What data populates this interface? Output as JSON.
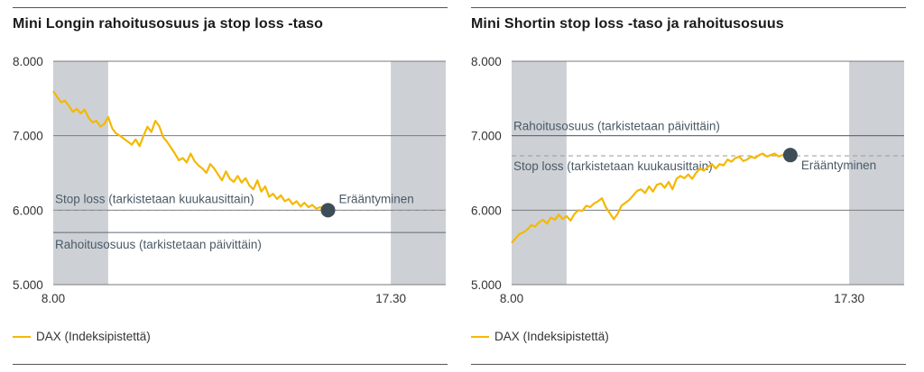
{
  "colors": {
    "series": "#F5B800",
    "closed_band": "#CDD1D6",
    "reference_line": "#5F6A72",
    "dashed_line": "#9A9A9A",
    "marker": "#3E4E58",
    "label_text": "#4A5A66"
  },
  "charts": [
    {
      "title": "Mini Longin rahoitusosuus ja stop loss -taso",
      "legend": "DAX (Indeksipistettä)",
      "annotations": {
        "stop_loss": "Stop loss (tarkistetaan kuukausittain)",
        "financing": "Rahoitusosuus (tarkistetaan päivittäin)",
        "expiry": "Erääntyminen"
      }
    },
    {
      "title": "Mini Shortin stop loss -taso ja rahoitusosuus",
      "legend": "DAX (Indeksipistettä)",
      "annotations": {
        "stop_loss": "Stop loss (tarkistetaan kuukausittain)",
        "financing": "Rahoitusosuus (tarkistetaan päivittäin)",
        "expiry": "Erääntyminen"
      }
    }
  ],
  "chart_data": [
    {
      "type": "line",
      "title": "Mini Longin rahoitusosuus ja stop loss -taso",
      "xlabel": "",
      "ylabel": "",
      "y_ticks": [
        "8.000",
        "7.000",
        "6.000",
        "5.000"
      ],
      "x_ticks": [
        "8.00",
        "17.30"
      ],
      "ylim": [
        5000,
        8000
      ],
      "xlim": [
        0,
        100
      ],
      "grid": true,
      "closed_bands_x": [
        [
          0,
          14
        ],
        [
          86,
          100
        ]
      ],
      "reference_lines": [
        {
          "name": "Stop loss (tarkistetaan kuukausittain)",
          "y": 6000,
          "style": "dashed"
        },
        {
          "name": "Rahoitusosuus (tarkistetaan päivittäin)",
          "y": 5700,
          "style": "solid"
        }
      ],
      "expiry_point": {
        "label": "Erääntyminen",
        "x": 70,
        "y": 6000
      },
      "series": [
        {
          "name": "DAX (Indeksipistettä)",
          "x": [
            0,
            1,
            2,
            3,
            4,
            5,
            6,
            7,
            8,
            9,
            10,
            11,
            12,
            13,
            14,
            15,
            16,
            17,
            18,
            19,
            20,
            21,
            22,
            23,
            24,
            25,
            26,
            27,
            28,
            29,
            30,
            31,
            32,
            33,
            34,
            35,
            36,
            37,
            38,
            39,
            40,
            41,
            42,
            43,
            44,
            45,
            46,
            47,
            48,
            49,
            50,
            51,
            52,
            53,
            54,
            55,
            56,
            57,
            58,
            59,
            60,
            61,
            62,
            63,
            64,
            65,
            66,
            67,
            68,
            69,
            70
          ],
          "values": [
            7600,
            7520,
            7450,
            7470,
            7400,
            7320,
            7360,
            7300,
            7350,
            7240,
            7180,
            7200,
            7120,
            7160,
            7250,
            7100,
            7030,
            7000,
            6960,
            6920,
            6880,
            6950,
            6860,
            7000,
            7120,
            7050,
            7200,
            7130,
            6980,
            6920,
            6840,
            6760,
            6670,
            6700,
            6640,
            6760,
            6660,
            6600,
            6560,
            6500,
            6620,
            6560,
            6480,
            6400,
            6520,
            6420,
            6380,
            6460,
            6370,
            6430,
            6330,
            6280,
            6400,
            6250,
            6320,
            6180,
            6220,
            6150,
            6200,
            6120,
            6150,
            6080,
            6120,
            6050,
            6100,
            6040,
            6070,
            6020,
            6040,
            6010,
            6000
          ]
        }
      ]
    },
    {
      "type": "line",
      "title": "Mini Shortin stop loss -taso ja rahoitusosuus",
      "xlabel": "",
      "ylabel": "",
      "y_ticks": [
        "8.000",
        "7.000",
        "6.000",
        "5.000"
      ],
      "x_ticks": [
        "8.00",
        "17.30"
      ],
      "ylim": [
        5000,
        8000
      ],
      "xlim": [
        0,
        100
      ],
      "grid": true,
      "closed_bands_x": [
        [
          0,
          14
        ],
        [
          86,
          100
        ]
      ],
      "reference_lines": [
        {
          "name": "Rahoitusosuus (tarkistetaan päivittäin)",
          "y": 7000,
          "style": "solid"
        },
        {
          "name": "Stop loss (tarkistetaan kuukausittain)",
          "y": 6730,
          "style": "dashed"
        }
      ],
      "expiry_point": {
        "label": "Erääntyminen",
        "x": 71,
        "y": 6740
      },
      "series": [
        {
          "name": "DAX (Indeksipistettä)",
          "x": [
            0,
            1,
            2,
            3,
            4,
            5,
            6,
            7,
            8,
            9,
            10,
            11,
            12,
            13,
            14,
            15,
            16,
            17,
            18,
            19,
            20,
            21,
            22,
            23,
            24,
            25,
            26,
            27,
            28,
            29,
            30,
            31,
            32,
            33,
            34,
            35,
            36,
            37,
            38,
            39,
            40,
            41,
            42,
            43,
            44,
            45,
            46,
            47,
            48,
            49,
            50,
            51,
            52,
            53,
            54,
            55,
            56,
            57,
            58,
            59,
            60,
            61,
            62,
            63,
            64,
            65,
            66,
            67,
            68,
            69,
            70,
            71
          ],
          "values": [
            5560,
            5620,
            5680,
            5700,
            5740,
            5800,
            5780,
            5840,
            5870,
            5820,
            5900,
            5870,
            5940,
            5880,
            5920,
            5860,
            5950,
            6000,
            5990,
            6060,
            6040,
            6090,
            6120,
            6160,
            6040,
            5960,
            5880,
            5950,
            6060,
            6100,
            6140,
            6200,
            6260,
            6280,
            6230,
            6320,
            6250,
            6340,
            6360,
            6300,
            6380,
            6280,
            6420,
            6460,
            6430,
            6480,
            6420,
            6500,
            6560,
            6530,
            6580,
            6620,
            6560,
            6620,
            6600,
            6680,
            6650,
            6700,
            6720,
            6660,
            6680,
            6720,
            6700,
            6740,
            6760,
            6720,
            6740,
            6760,
            6720,
            6740,
            6730,
            6740
          ]
        }
      ]
    }
  ]
}
